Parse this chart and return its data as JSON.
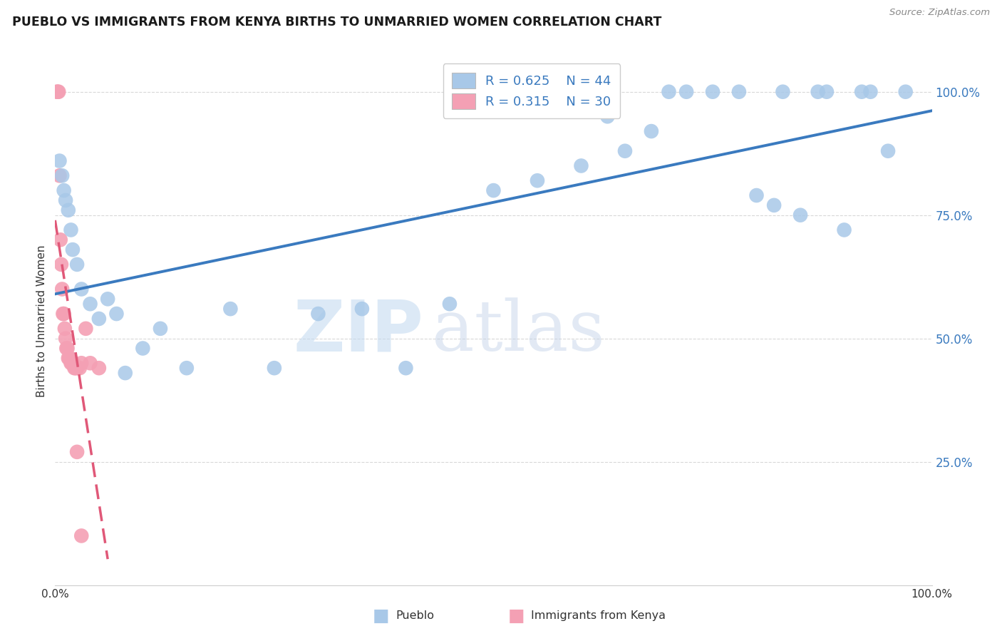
{
  "title": "PUEBLO VS IMMIGRANTS FROM KENYA BIRTHS TO UNMARRIED WOMEN CORRELATION CHART",
  "source": "Source: ZipAtlas.com",
  "ylabel": "Births to Unmarried Women",
  "legend_pueblo_R": "R = 0.625",
  "legend_pueblo_N": "N = 44",
  "legend_kenya_R": "R = 0.315",
  "legend_kenya_N": "N = 30",
  "pueblo_color": "#a8c8e8",
  "kenya_color": "#f4a0b4",
  "pueblo_line_color": "#3a7abf",
  "kenya_line_color": "#e05878",
  "ytick_color": "#3a7abf",
  "background_color": "#ffffff",
  "grid_color": "#d8d8d8",
  "pueblo_x": [
    0.5,
    0.8,
    1.0,
    1.2,
    1.5,
    1.8,
    2.0,
    2.5,
    3.0,
    4.0,
    5.0,
    6.0,
    7.0,
    8.0,
    10.0,
    12.0,
    15.0,
    20.0,
    25.0,
    30.0,
    35.0,
    40.0,
    45.0,
    50.0,
    55.0,
    60.0,
    63.0,
    65.0,
    68.0,
    70.0,
    72.0,
    75.0,
    78.0,
    80.0,
    82.0,
    83.0,
    85.0,
    87.0,
    88.0,
    90.0,
    92.0,
    93.0,
    95.0,
    97.0
  ],
  "pueblo_y": [
    86.0,
    83.0,
    80.0,
    78.0,
    76.0,
    72.0,
    68.0,
    65.0,
    60.0,
    57.0,
    54.0,
    58.0,
    55.0,
    43.0,
    48.0,
    52.0,
    44.0,
    56.0,
    44.0,
    55.0,
    56.0,
    44.0,
    57.0,
    80.0,
    82.0,
    85.0,
    95.0,
    88.0,
    92.0,
    100.0,
    100.0,
    100.0,
    100.0,
    79.0,
    77.0,
    100.0,
    75.0,
    100.0,
    100.0,
    72.0,
    100.0,
    100.0,
    88.0,
    100.0
  ],
  "kenya_x": [
    0.2,
    0.3,
    0.4,
    0.5,
    0.6,
    0.7,
    0.8,
    0.9,
    1.0,
    1.1,
    1.2,
    1.3,
    1.4,
    1.5,
    1.6,
    1.7,
    1.8,
    1.9,
    2.0,
    2.1,
    2.2,
    2.3,
    2.5,
    2.8,
    3.0,
    3.5,
    4.0,
    5.0,
    2.5,
    3.0
  ],
  "kenya_y": [
    100.0,
    100.0,
    100.0,
    83.0,
    70.0,
    65.0,
    60.0,
    55.0,
    55.0,
    52.0,
    50.0,
    48.0,
    48.0,
    46.0,
    46.0,
    46.0,
    45.0,
    45.0,
    45.0,
    45.0,
    44.0,
    44.0,
    44.0,
    44.0,
    45.0,
    52.0,
    45.0,
    44.0,
    27.0,
    10.0
  ],
  "watermark_zip_color": "#c0d8f0",
  "watermark_atlas_color": "#c0d0e8"
}
